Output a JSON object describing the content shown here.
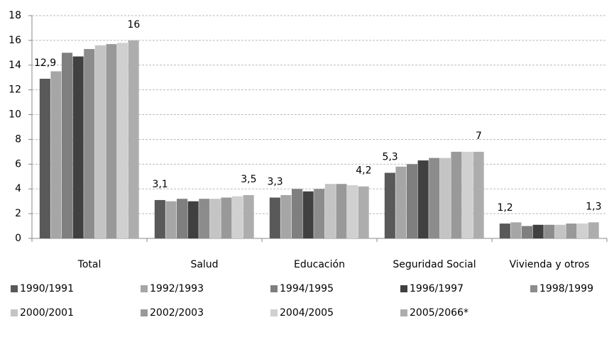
{
  "chart_data": {
    "type": "bar",
    "categories": [
      "Total",
      "Salud",
      "Educación",
      "Seguridad Social",
      "Vivienda y otros"
    ],
    "series": [
      {
        "name": "1990/1991",
        "color": "#595959",
        "values": [
          12.9,
          3.1,
          3.3,
          5.3,
          1.2
        ],
        "value_labels": [
          "12,9",
          "3,1",
          "3,3",
          "5,3",
          "1,2"
        ]
      },
      {
        "name": "1992/1993",
        "color": "#a6a6a6",
        "values": [
          13.5,
          3.0,
          3.5,
          5.8,
          1.3
        ]
      },
      {
        "name": "1994/1995",
        "color": "#7f7f7f",
        "values": [
          15.0,
          3.2,
          4.0,
          6.0,
          1.0
        ]
      },
      {
        "name": "1996/1997",
        "color": "#404040",
        "values": [
          14.7,
          3.0,
          3.8,
          6.3,
          1.1
        ]
      },
      {
        "name": "1998/1999",
        "color": "#8c8c8c",
        "values": [
          15.3,
          3.2,
          4.0,
          6.5,
          1.1
        ]
      },
      {
        "name": "2000/2001",
        "color": "#c4c4c4",
        "values": [
          15.6,
          3.2,
          4.4,
          6.5,
          1.1
        ]
      },
      {
        "name": "2002/2003",
        "color": "#999999",
        "values": [
          15.7,
          3.3,
          4.4,
          7.0,
          1.2
        ]
      },
      {
        "name": "2004/2005",
        "color": "#d0d0d0",
        "values": [
          15.8,
          3.4,
          4.3,
          7.0,
          1.2
        ]
      },
      {
        "name": "2005/2066*",
        "color": "#adadad",
        "values": [
          16,
          3.5,
          4.2,
          7,
          1.3
        ],
        "value_labels": [
          "16",
          "3,5",
          "4,2",
          "7",
          "1,3"
        ]
      }
    ],
    "ylim": [
      0,
      18
    ],
    "yticks": [
      0,
      2,
      4,
      6,
      8,
      10,
      12,
      14,
      16,
      18
    ],
    "grid": true
  }
}
